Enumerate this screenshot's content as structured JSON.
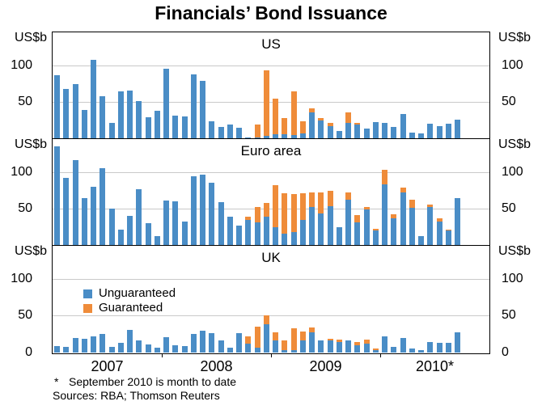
{
  "title": "Financials’ Bond Issuance",
  "axis_unit_label": "US$b",
  "legend": {
    "unguaranteed": "Unguaranteed",
    "guaranteed": "Guaranteed"
  },
  "footnote_marker": "*",
  "footnote_text": "September 2010 is month to date",
  "sources": "Sources: RBA; Thomson Reuters",
  "colors": {
    "unguaranteed": "#4a8dc6",
    "guaranteed": "#ef8c3a",
    "gridline": "#c9c9c9",
    "frame": "#000000"
  },
  "x_axis": {
    "year_labels": [
      "2007",
      "2008",
      "2009",
      "2010*"
    ],
    "frequency": "monthly",
    "start": "2007-01",
    "end": "2010-09"
  },
  "y_axis": {
    "ticks": [
      0,
      50,
      100
    ],
    "max": 145
  },
  "months": [
    "2007-01",
    "2007-02",
    "2007-03",
    "2007-04",
    "2007-05",
    "2007-06",
    "2007-07",
    "2007-08",
    "2007-09",
    "2007-10",
    "2007-11",
    "2007-12",
    "2008-01",
    "2008-02",
    "2008-03",
    "2008-04",
    "2008-05",
    "2008-06",
    "2008-07",
    "2008-08",
    "2008-09",
    "2008-10",
    "2008-11",
    "2008-12",
    "2009-01",
    "2009-02",
    "2009-03",
    "2009-04",
    "2009-05",
    "2009-06",
    "2009-07",
    "2009-08",
    "2009-09",
    "2009-10",
    "2009-11",
    "2009-12",
    "2010-01",
    "2010-02",
    "2010-03",
    "2010-04",
    "2010-05",
    "2010-06",
    "2010-07",
    "2010-08",
    "2010-09"
  ],
  "chart_data": [
    {
      "type": "bar",
      "stacked": true,
      "id": "us",
      "title": "US",
      "ylabel": "US$b",
      "ylim": [
        0,
        145
      ],
      "gridlines": [
        50,
        100
      ],
      "ytick_labels": [
        100,
        50
      ],
      "series": [
        {
          "name": "Unguaranteed",
          "values": [
            87,
            68,
            75,
            40,
            108,
            58,
            22,
            65,
            66,
            52,
            30,
            38,
            96,
            32,
            31,
            88,
            79,
            24,
            16,
            20,
            15,
            2,
            2,
            4,
            7,
            7,
            6,
            8,
            36,
            25,
            18,
            11,
            22,
            20,
            14,
            23,
            22,
            16,
            34,
            9,
            8,
            21,
            18,
            21,
            26
          ]
        },
        {
          "name": "Guaranteed",
          "values": [
            0,
            0,
            0,
            0,
            0,
            0,
            0,
            0,
            0,
            0,
            0,
            0,
            0,
            0,
            0,
            0,
            0,
            0,
            0,
            0,
            0,
            0,
            18,
            89,
            48,
            22,
            59,
            16,
            6,
            4,
            4,
            0,
            14,
            2,
            0,
            0,
            0,
            0,
            0,
            0,
            0,
            0,
            0,
            0,
            0
          ]
        }
      ]
    },
    {
      "type": "bar",
      "stacked": true,
      "id": "euro-area",
      "title": "Euro area",
      "ylabel": "US$b",
      "ylim": [
        0,
        145
      ],
      "gridlines": [
        50,
        100
      ],
      "ytick_labels": [
        100,
        50
      ],
      "series": [
        {
          "name": "Unguaranteed",
          "values": [
            135,
            92,
            117,
            65,
            80,
            105,
            50,
            22,
            41,
            77,
            31,
            13,
            61,
            60,
            33,
            95,
            97,
            86,
            59,
            40,
            28,
            35,
            32,
            40,
            25,
            17,
            19,
            35,
            53,
            44,
            54,
            25,
            63,
            32,
            49,
            21,
            84,
            37,
            72,
            52,
            13,
            53,
            33,
            21,
            65
          ]
        },
        {
          "name": "Guaranteed",
          "values": [
            0,
            0,
            0,
            0,
            0,
            0,
            0,
            0,
            0,
            0,
            0,
            0,
            0,
            0,
            0,
            0,
            0,
            0,
            0,
            0,
            0,
            5,
            21,
            18,
            57,
            54,
            51,
            36,
            20,
            28,
            21,
            0,
            9,
            10,
            4,
            2,
            19,
            6,
            7,
            11,
            0,
            3,
            4,
            1,
            0
          ]
        }
      ]
    },
    {
      "type": "bar",
      "stacked": true,
      "id": "uk",
      "title": "UK",
      "ylabel": "US$b",
      "ylim": [
        0,
        145
      ],
      "gridlines": [
        50,
        100
      ],
      "ytick_labels": [
        100,
        50,
        0
      ],
      "series": [
        {
          "name": "Unguaranteed",
          "values": [
            9,
            8,
            20,
            19,
            22,
            25,
            8,
            13,
            31,
            16,
            11,
            7,
            21,
            10,
            9,
            25,
            30,
            26,
            17,
            7,
            26,
            12,
            7,
            38,
            16,
            3,
            3,
            16,
            28,
            17,
            16,
            14,
            17,
            10,
            12,
            3,
            22,
            8,
            20,
            6,
            3,
            14,
            13,
            13,
            28
          ]
        },
        {
          "name": "Guaranteed",
          "values": [
            0,
            0,
            0,
            0,
            0,
            0,
            0,
            0,
            0,
            0,
            0,
            0,
            0,
            0,
            0,
            0,
            0,
            0,
            0,
            0,
            0,
            10,
            28,
            13,
            11,
            13,
            30,
            13,
            6,
            0,
            3,
            4,
            0,
            4,
            6,
            3,
            0,
            0,
            0,
            0,
            0,
            0,
            0,
            0,
            0
          ]
        }
      ]
    }
  ]
}
